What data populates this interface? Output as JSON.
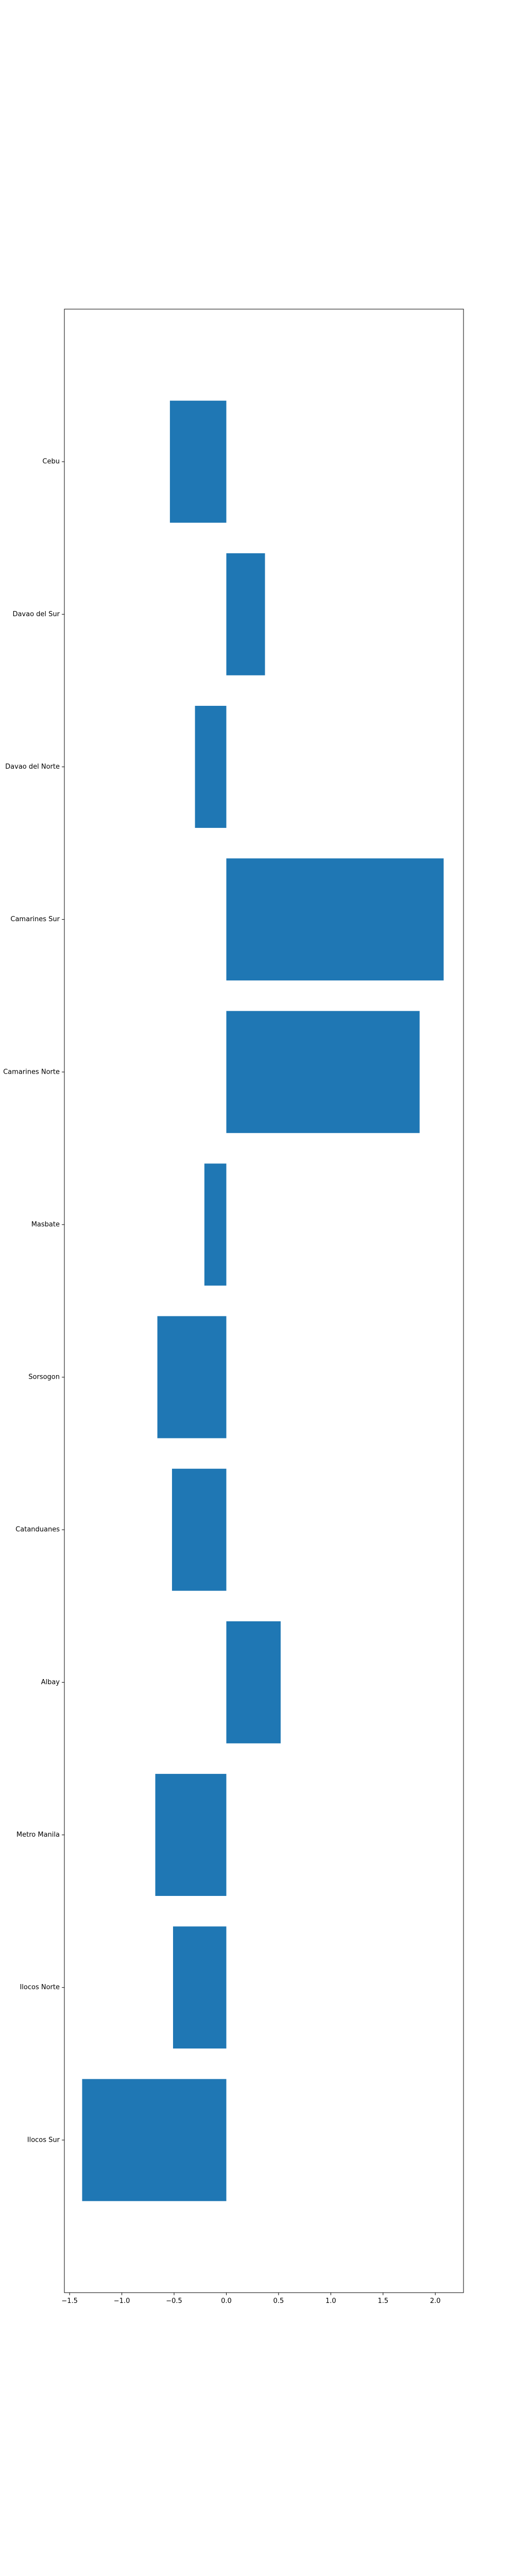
{
  "chart_data": {
    "type": "bar",
    "orientation": "horizontal",
    "categories": [
      "Ilocos Sur",
      "Ilocos Norte",
      "Metro Manila",
      "Albay",
      "Catanduanes",
      "Sorsogon",
      "Masbate",
      "Camarines Norte",
      "Camarines Sur",
      "Davao del Norte",
      "Davao del Sur",
      "Cebu"
    ],
    "values": [
      -1.38,
      -0.51,
      -0.68,
      0.52,
      -0.52,
      -0.66,
      -0.21,
      1.85,
      2.08,
      -0.3,
      0.37,
      -0.54
    ],
    "xlim": [
      -1.55,
      2.27
    ],
    "xticks": [
      -1.5,
      -1.0,
      -0.5,
      0.0,
      0.5,
      1.0,
      1.5,
      2.0
    ],
    "xtick_labels": [
      "−1.5",
      "−1.0",
      "−0.5",
      "0.0",
      "0.5",
      "1.0",
      "1.5",
      "2.0"
    ],
    "title": "",
    "xlabel": "",
    "ylabel": "",
    "grid": false,
    "bar_color": "#1f77b4"
  }
}
